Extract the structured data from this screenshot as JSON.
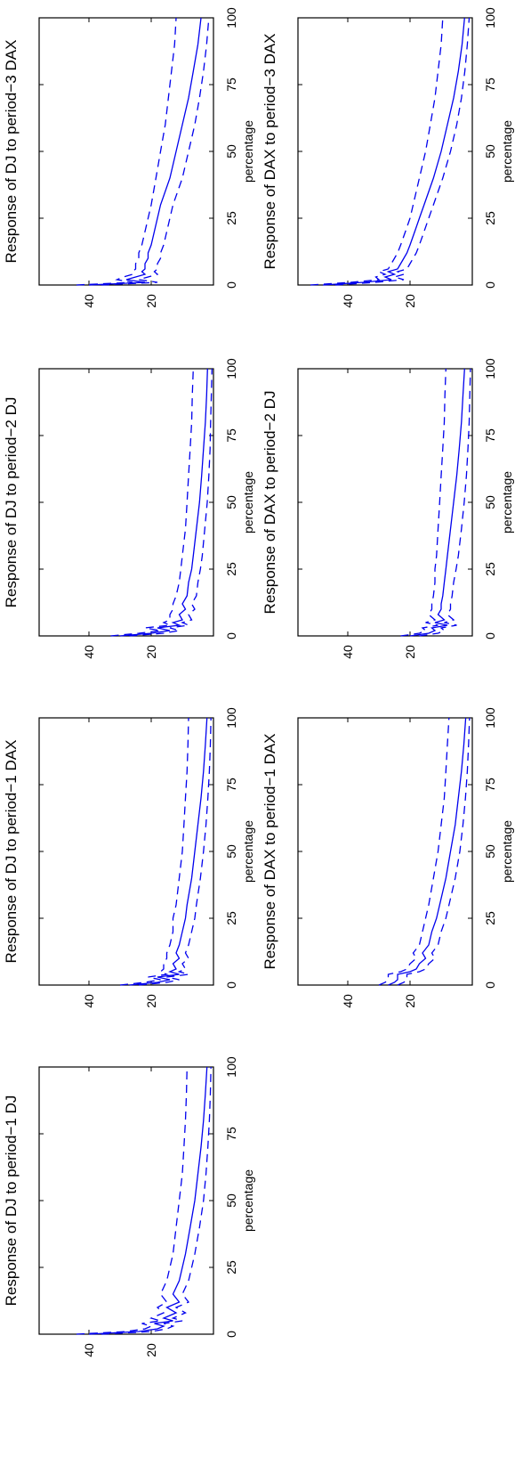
{
  "colors": {
    "line": "#0000ee",
    "axes": "#000000",
    "background": "#ffffff"
  },
  "chart_data": [
    {
      "type": "line",
      "title": "Response of DJ to period−1 DJ",
      "ylabel": "percentage",
      "xlim": [
        0,
        100
      ],
      "ylim": [
        0,
        56
      ],
      "xticks": [
        "0",
        "25",
        "50",
        "75",
        "100"
      ],
      "yticks": [
        "20",
        "40"
      ],
      "legend": "none",
      "grid": false,
      "x": [
        0,
        1,
        2,
        3,
        4,
        5,
        6,
        8,
        10,
        12,
        15,
        20,
        25,
        30,
        40,
        50,
        60,
        70,
        80,
        90,
        100
      ],
      "series": [
        {
          "role": "response",
          "style": "solid",
          "values": [
            40,
            24,
            18,
            16,
            19,
            13,
            16,
            12,
            15,
            11,
            13,
            11,
            10,
            9,
            7.5,
            6,
            5,
            4,
            3.2,
            2.6,
            2.1
          ]
        },
        {
          "role": "upper band",
          "style": "dashed",
          "values": [
            44,
            28,
            22,
            20,
            23,
            17,
            20,
            16,
            18,
            15,
            17,
            15,
            14,
            13,
            12,
            11,
            10,
            9.5,
            9,
            8.7,
            8.5
          ]
        },
        {
          "role": "lower band",
          "style": "dashed",
          "values": [
            36,
            20,
            15,
            13,
            16,
            10,
            13,
            9,
            12,
            8,
            10,
            8,
            7,
            6,
            4.5,
            3.2,
            2.4,
            1.8,
            1.3,
            1,
            0.8
          ]
        }
      ]
    },
    {
      "type": "line",
      "title": "Response of DJ to period−1 DAX",
      "ylabel": "percentage",
      "xlim": [
        0,
        100
      ],
      "ylim": [
        0,
        56
      ],
      "xticks": [
        "0",
        "25",
        "50",
        "75",
        "100"
      ],
      "yticks": [
        "20",
        "40"
      ],
      "legend": "none",
      "grid": false,
      "x": [
        0,
        1,
        2,
        3,
        4,
        5,
        6,
        8,
        10,
        12,
        15,
        20,
        25,
        30,
        40,
        50,
        60,
        70,
        80,
        90,
        100
      ],
      "series": [
        {
          "role": "response",
          "style": "solid",
          "values": [
            27,
            18,
            14,
            18,
            11,
            14,
            12,
            13,
            11,
            12,
            11,
            10,
            9,
            8.5,
            7,
            6,
            5,
            4,
            3.2,
            2.6,
            2.1
          ]
        },
        {
          "role": "upper band",
          "style": "dashed",
          "values": [
            30,
            22,
            17,
            21,
            15,
            17,
            16,
            16,
            15,
            15,
            14,
            13,
            13,
            12,
            11,
            10,
            9.5,
            9,
            8.5,
            8.2,
            8
          ]
        },
        {
          "role": "lower band",
          "style": "dashed",
          "values": [
            24,
            15,
            11,
            15,
            8,
            11,
            9,
            10,
            8,
            9,
            8,
            7,
            6,
            5.5,
            4.2,
            3.2,
            2.4,
            1.8,
            1.3,
            1,
            0.8
          ]
        }
      ]
    },
    {
      "type": "line",
      "title": "Response of DJ to period−2 DJ",
      "ylabel": "percentage",
      "xlim": [
        0,
        100
      ],
      "ylim": [
        0,
        56
      ],
      "xticks": [
        "0",
        "25",
        "50",
        "75",
        "100"
      ],
      "yticks": [
        "20",
        "40"
      ],
      "legend": "none",
      "grid": false,
      "x": [
        0,
        1,
        2,
        3,
        4,
        5,
        6,
        8,
        10,
        12,
        15,
        20,
        25,
        30,
        40,
        50,
        60,
        70,
        80,
        90,
        100
      ],
      "series": [
        {
          "role": "response",
          "style": "solid",
          "values": [
            30,
            20,
            14,
            18,
            11,
            13,
            10,
            11,
            9,
            10,
            8.5,
            8,
            7,
            6.5,
            5.5,
            4.5,
            3.8,
            3.2,
            2.6,
            2.2,
            1.9
          ]
        },
        {
          "role": "upper band",
          "style": "dashed",
          "values": [
            33,
            24,
            17,
            22,
            14,
            16,
            14,
            14,
            13,
            13,
            12,
            11,
            10.5,
            10,
            9,
            8.5,
            8,
            7.5,
            7,
            6.8,
            6.5
          ]
        },
        {
          "role": "lower band",
          "style": "dashed",
          "values": [
            27,
            16,
            11,
            14,
            8,
            10,
            7,
            8,
            6,
            7,
            5.5,
            5,
            4.2,
            3.6,
            2.8,
            2,
            1.5,
            1.1,
            0.9,
            0.7,
            0.5
          ]
        }
      ]
    },
    {
      "type": "line",
      "title": "Response of DJ to period−3 DAX",
      "ylabel": "percentage",
      "xlim": [
        0,
        100
      ],
      "ylim": [
        0,
        56
      ],
      "xticks": [
        "0",
        "25",
        "50",
        "75",
        "100"
      ],
      "yticks": [
        "20",
        "40"
      ],
      "legend": "none",
      "grid": false,
      "x": [
        0,
        1,
        2,
        3,
        4,
        5,
        6,
        8,
        10,
        12,
        15,
        20,
        25,
        30,
        40,
        50,
        60,
        70,
        80,
        90,
        100
      ],
      "series": [
        {
          "role": "response",
          "style": "solid",
          "values": [
            40,
            22,
            28,
            25,
            22,
            23,
            22,
            22,
            21,
            21,
            20,
            19,
            18,
            17,
            14,
            12,
            10,
            8,
            6.5,
            5,
            4
          ]
        },
        {
          "role": "upper band",
          "style": "dashed",
          "values": [
            44,
            26,
            31,
            29,
            26,
            26,
            25,
            25,
            24,
            24,
            23,
            22,
            21,
            20,
            18.5,
            17,
            15.5,
            14.5,
            13.5,
            12.5,
            12
          ]
        },
        {
          "role": "lower band",
          "style": "dashed",
          "values": [
            36,
            18,
            24,
            21,
            18,
            19,
            18,
            18,
            17,
            17,
            16,
            15,
            14,
            13,
            10,
            8,
            6,
            4.5,
            3.2,
            2.2,
            1.5
          ]
        }
      ]
    },
    {
      "type": "line",
      "title": "Response of DAX to period−1 DAX",
      "ylabel": "percentage",
      "xlim": [
        0,
        100
      ],
      "ylim": [
        0,
        56
      ],
      "xticks": [
        "0",
        "25",
        "50",
        "75",
        "100"
      ],
      "yticks": [
        "20",
        "40"
      ],
      "legend": "none",
      "grid": false,
      "x": [
        0,
        1,
        2,
        3,
        4,
        5,
        6,
        8,
        10,
        12,
        15,
        20,
        25,
        30,
        40,
        50,
        60,
        70,
        80,
        90,
        100
      ],
      "series": [
        {
          "role": "response",
          "style": "solid",
          "values": [
            27,
            25,
            24,
            24,
            24,
            20,
            18,
            17,
            15,
            16,
            14,
            13,
            11.5,
            10.5,
            8.5,
            7,
            5.5,
            4.5,
            3.5,
            2.7,
            2.1
          ]
        },
        {
          "role": "upper band",
          "style": "dashed",
          "values": [
            30,
            28,
            27,
            27,
            27,
            23,
            21,
            20,
            18,
            19,
            17,
            16,
            15,
            14,
            12.5,
            11,
            10,
            9,
            8.5,
            8,
            7.5
          ]
        },
        {
          "role": "lower band",
          "style": "dashed",
          "values": [
            24,
            22,
            21,
            21,
            21,
            17,
            15,
            14,
            12,
            13,
            11,
            10,
            8.5,
            7.5,
            5.5,
            4,
            3,
            2.2,
            1.6,
            1.2,
            0.9
          ]
        }
      ]
    },
    {
      "type": "line",
      "title": "Response of DAX to period−2 DJ",
      "ylabel": "percentage",
      "xlim": [
        0,
        100
      ],
      "ylim": [
        0,
        56
      ],
      "xticks": [
        "0",
        "25",
        "50",
        "75",
        "100"
      ],
      "yticks": [
        "20",
        "40"
      ],
      "legend": "none",
      "grid": false,
      "x": [
        0,
        1,
        2,
        3,
        4,
        5,
        6,
        8,
        10,
        12,
        15,
        20,
        25,
        30,
        40,
        50,
        60,
        70,
        80,
        90,
        100
      ],
      "series": [
        {
          "role": "response",
          "style": "solid",
          "values": [
            20,
            14,
            12,
            13,
            8,
            12,
            9,
            11,
            10,
            10,
            9.5,
            9,
            8.5,
            8,
            7,
            6,
            5,
            4.2,
            3.5,
            3,
            2.5
          ]
        },
        {
          "role": "upper band",
          "style": "dashed",
          "values": [
            23,
            17,
            15,
            16,
            11,
            15,
            12,
            14,
            13,
            13,
            12.5,
            12,
            12,
            11.5,
            11,
            10.5,
            10,
            9.5,
            9,
            8.8,
            8.5
          ]
        },
        {
          "role": "lower band",
          "style": "dashed",
          "values": [
            17,
            11,
            9,
            10,
            5,
            9,
            6,
            8,
            7,
            7,
            6.5,
            6,
            5.2,
            4.5,
            3.5,
            2.6,
            1.9,
            1.4,
            1,
            0.8,
            0.6
          ]
        }
      ]
    },
    {
      "type": "line",
      "title": "Response of DAX to period−3 DAX",
      "ylabel": "percentage",
      "xlim": [
        0,
        100
      ],
      "ylim": [
        0,
        56
      ],
      "xticks": [
        "0",
        "25",
        "50",
        "75",
        "100"
      ],
      "yticks": [
        "20",
        "40"
      ],
      "legend": "none",
      "grid": false,
      "x": [
        0,
        1,
        2,
        3,
        4,
        5,
        6,
        8,
        10,
        12,
        15,
        20,
        25,
        30,
        40,
        50,
        60,
        70,
        80,
        90,
        100
      ],
      "series": [
        {
          "role": "response",
          "style": "solid",
          "values": [
            48,
            35,
            26,
            28,
            25,
            27,
            24,
            23,
            22,
            21,
            20,
            18.5,
            17,
            15.5,
            12.5,
            10,
            8,
            6,
            4.5,
            3.3,
            2.5
          ]
        },
        {
          "role": "upper band",
          "style": "dashed",
          "values": [
            52,
            39,
            30,
            31,
            28,
            30,
            27,
            26,
            25,
            24,
            23,
            21.5,
            20,
            19,
            17,
            15,
            13.5,
            12,
            11,
            10,
            9.5
          ]
        },
        {
          "role": "lower band",
          "style": "dashed",
          "values": [
            44,
            31,
            22,
            25,
            22,
            24,
            21,
            20,
            19,
            18,
            17,
            15.5,
            14,
            12.5,
            9.5,
            7,
            5,
            3.5,
            2.4,
            1.6,
            1
          ]
        }
      ]
    }
  ]
}
